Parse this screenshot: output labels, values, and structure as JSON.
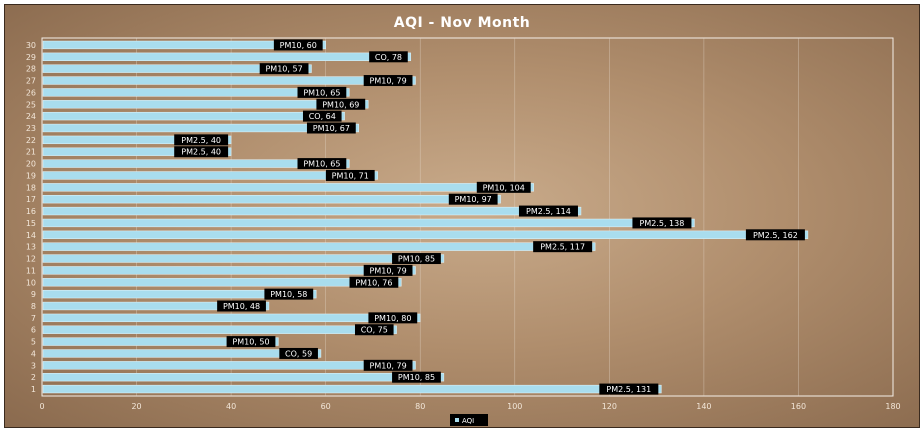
{
  "chart_data": {
    "type": "bar",
    "orientation": "horizontal",
    "title": "AQI - Nov Month",
    "categories": [
      "1",
      "2",
      "3",
      "4",
      "5",
      "6",
      "7",
      "8",
      "9",
      "10",
      "11",
      "12",
      "13",
      "14",
      "15",
      "16",
      "17",
      "18",
      "19",
      "20",
      "21",
      "22",
      "23",
      "24",
      "25",
      "26",
      "27",
      "28",
      "29",
      "30"
    ],
    "series": [
      {
        "name": "AQI",
        "color": "#a9ddee",
        "values": [
          131,
          85,
          79,
          59,
          50,
          75,
          80,
          48,
          58,
          76,
          79,
          85,
          117,
          162,
          138,
          114,
          97,
          104,
          71,
          65,
          40,
          40,
          67,
          64,
          69,
          65,
          79,
          57,
          78,
          60
        ],
        "pollutants": [
          "PM2.5",
          "PM10",
          "PM10",
          "CO",
          "PM10",
          "CO",
          "PM10",
          "PM10",
          "PM10",
          "PM10",
          "PM10",
          "PM10",
          "PM2.5",
          "PM2.5",
          "PM2.5",
          "PM2.5",
          "PM10",
          "PM10",
          "PM10",
          "PM10",
          "PM2.5",
          "PM2.5",
          "PM10",
          "CO",
          "PM10",
          "PM10",
          "PM10",
          "PM10",
          "CO",
          "PM10"
        ]
      }
    ],
    "data_labels": [
      "PM2.5, 131",
      "PM10, 85",
      "PM10, 79",
      "CO, 59",
      "PM10, 50",
      "CO, 75",
      "PM10, 80",
      "PM10, 48",
      "PM10, 58",
      "PM10, 76",
      "PM10, 79",
      "PM10, 85",
      "PM2.5, 117",
      "PM2.5, 162",
      "PM2.5, 138",
      "PM2.5, 114",
      "PM10, 97",
      "PM10, 104",
      "PM10, 71",
      "PM10, 65",
      "PM2.5, 40",
      "PM2.5, 40",
      "PM10, 67",
      "CO, 64",
      "PM10, 69",
      "PM10, 65",
      "PM10, 79",
      "PM10, 57",
      "CO, 78",
      "PM10, 60"
    ],
    "xlim": [
      0,
      180
    ],
    "xticks": [
      0,
      20,
      40,
      60,
      80,
      100,
      120,
      140,
      160,
      180
    ],
    "grid": true,
    "legend": "bottom-center",
    "background_color": "#b8997a",
    "label_box_color": "#000000"
  }
}
